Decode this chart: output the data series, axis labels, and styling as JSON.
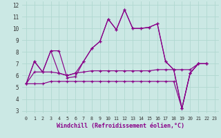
{
  "xlabel": "Windchill (Refroidissement éolien,°C)",
  "background_color": "#cbe8e4",
  "grid_color": "#b0d8d0",
  "line_color": "#880088",
  "xlim": [
    -0.5,
    23.5
  ],
  "ylim": [
    2.8,
    12.3
  ],
  "xticks": [
    0,
    1,
    2,
    3,
    4,
    5,
    6,
    7,
    8,
    9,
    10,
    11,
    12,
    13,
    14,
    15,
    16,
    17,
    18,
    19,
    20,
    21,
    22,
    23
  ],
  "yticks": [
    3,
    4,
    5,
    6,
    7,
    8,
    9,
    10,
    11,
    12
  ],
  "series": [
    {
      "x": [
        0,
        1,
        2,
        3,
        4,
        5,
        6,
        7,
        8,
        9,
        10,
        11,
        12,
        13,
        14,
        15,
        16,
        17,
        18,
        19,
        20,
        21,
        22
      ],
      "y": [
        5.3,
        7.2,
        6.3,
        8.1,
        8.1,
        5.8,
        5.9,
        7.2,
        8.3,
        8.9,
        10.8,
        9.9,
        11.6,
        10.0,
        10.0,
        10.1,
        10.4,
        7.2,
        6.5,
        3.2,
        6.2,
        7.0,
        7.0
      ]
    },
    {
      "x": [
        0,
        1,
        2,
        3,
        4,
        5,
        6,
        7,
        8,
        9,
        10,
        11,
        12,
        13,
        14,
        15,
        16,
        17,
        18,
        19,
        20,
        21,
        22
      ],
      "y": [
        5.3,
        7.2,
        6.3,
        8.1,
        6.2,
        6.0,
        6.2,
        7.2,
        8.3,
        8.9,
        10.8,
        9.9,
        11.6,
        10.0,
        10.0,
        10.1,
        10.4,
        7.2,
        6.5,
        3.2,
        6.2,
        7.0,
        7.0
      ]
    },
    {
      "x": [
        0,
        1,
        2,
        3,
        4,
        5,
        6,
        7,
        8,
        9,
        10,
        11,
        12,
        13,
        14,
        15,
        16,
        17,
        18,
        19,
        20,
        21,
        22
      ],
      "y": [
        5.3,
        6.3,
        6.3,
        6.3,
        6.2,
        6.0,
        6.2,
        6.3,
        6.4,
        6.4,
        6.4,
        6.4,
        6.4,
        6.4,
        6.4,
        6.4,
        6.5,
        6.5,
        6.5,
        6.5,
        6.5,
        7.0,
        7.0
      ]
    },
    {
      "x": [
        0,
        1,
        2,
        3,
        4,
        5,
        6,
        7,
        8,
        9,
        10,
        11,
        12,
        13,
        14,
        15,
        16,
        17,
        18,
        19,
        20,
        21,
        22
      ],
      "y": [
        5.3,
        5.3,
        5.3,
        5.5,
        5.5,
        5.5,
        5.5,
        5.5,
        5.5,
        5.5,
        5.5,
        5.5,
        5.5,
        5.5,
        5.5,
        5.5,
        5.5,
        5.5,
        5.5,
        3.2,
        6.2,
        7.0,
        7.0
      ]
    }
  ]
}
